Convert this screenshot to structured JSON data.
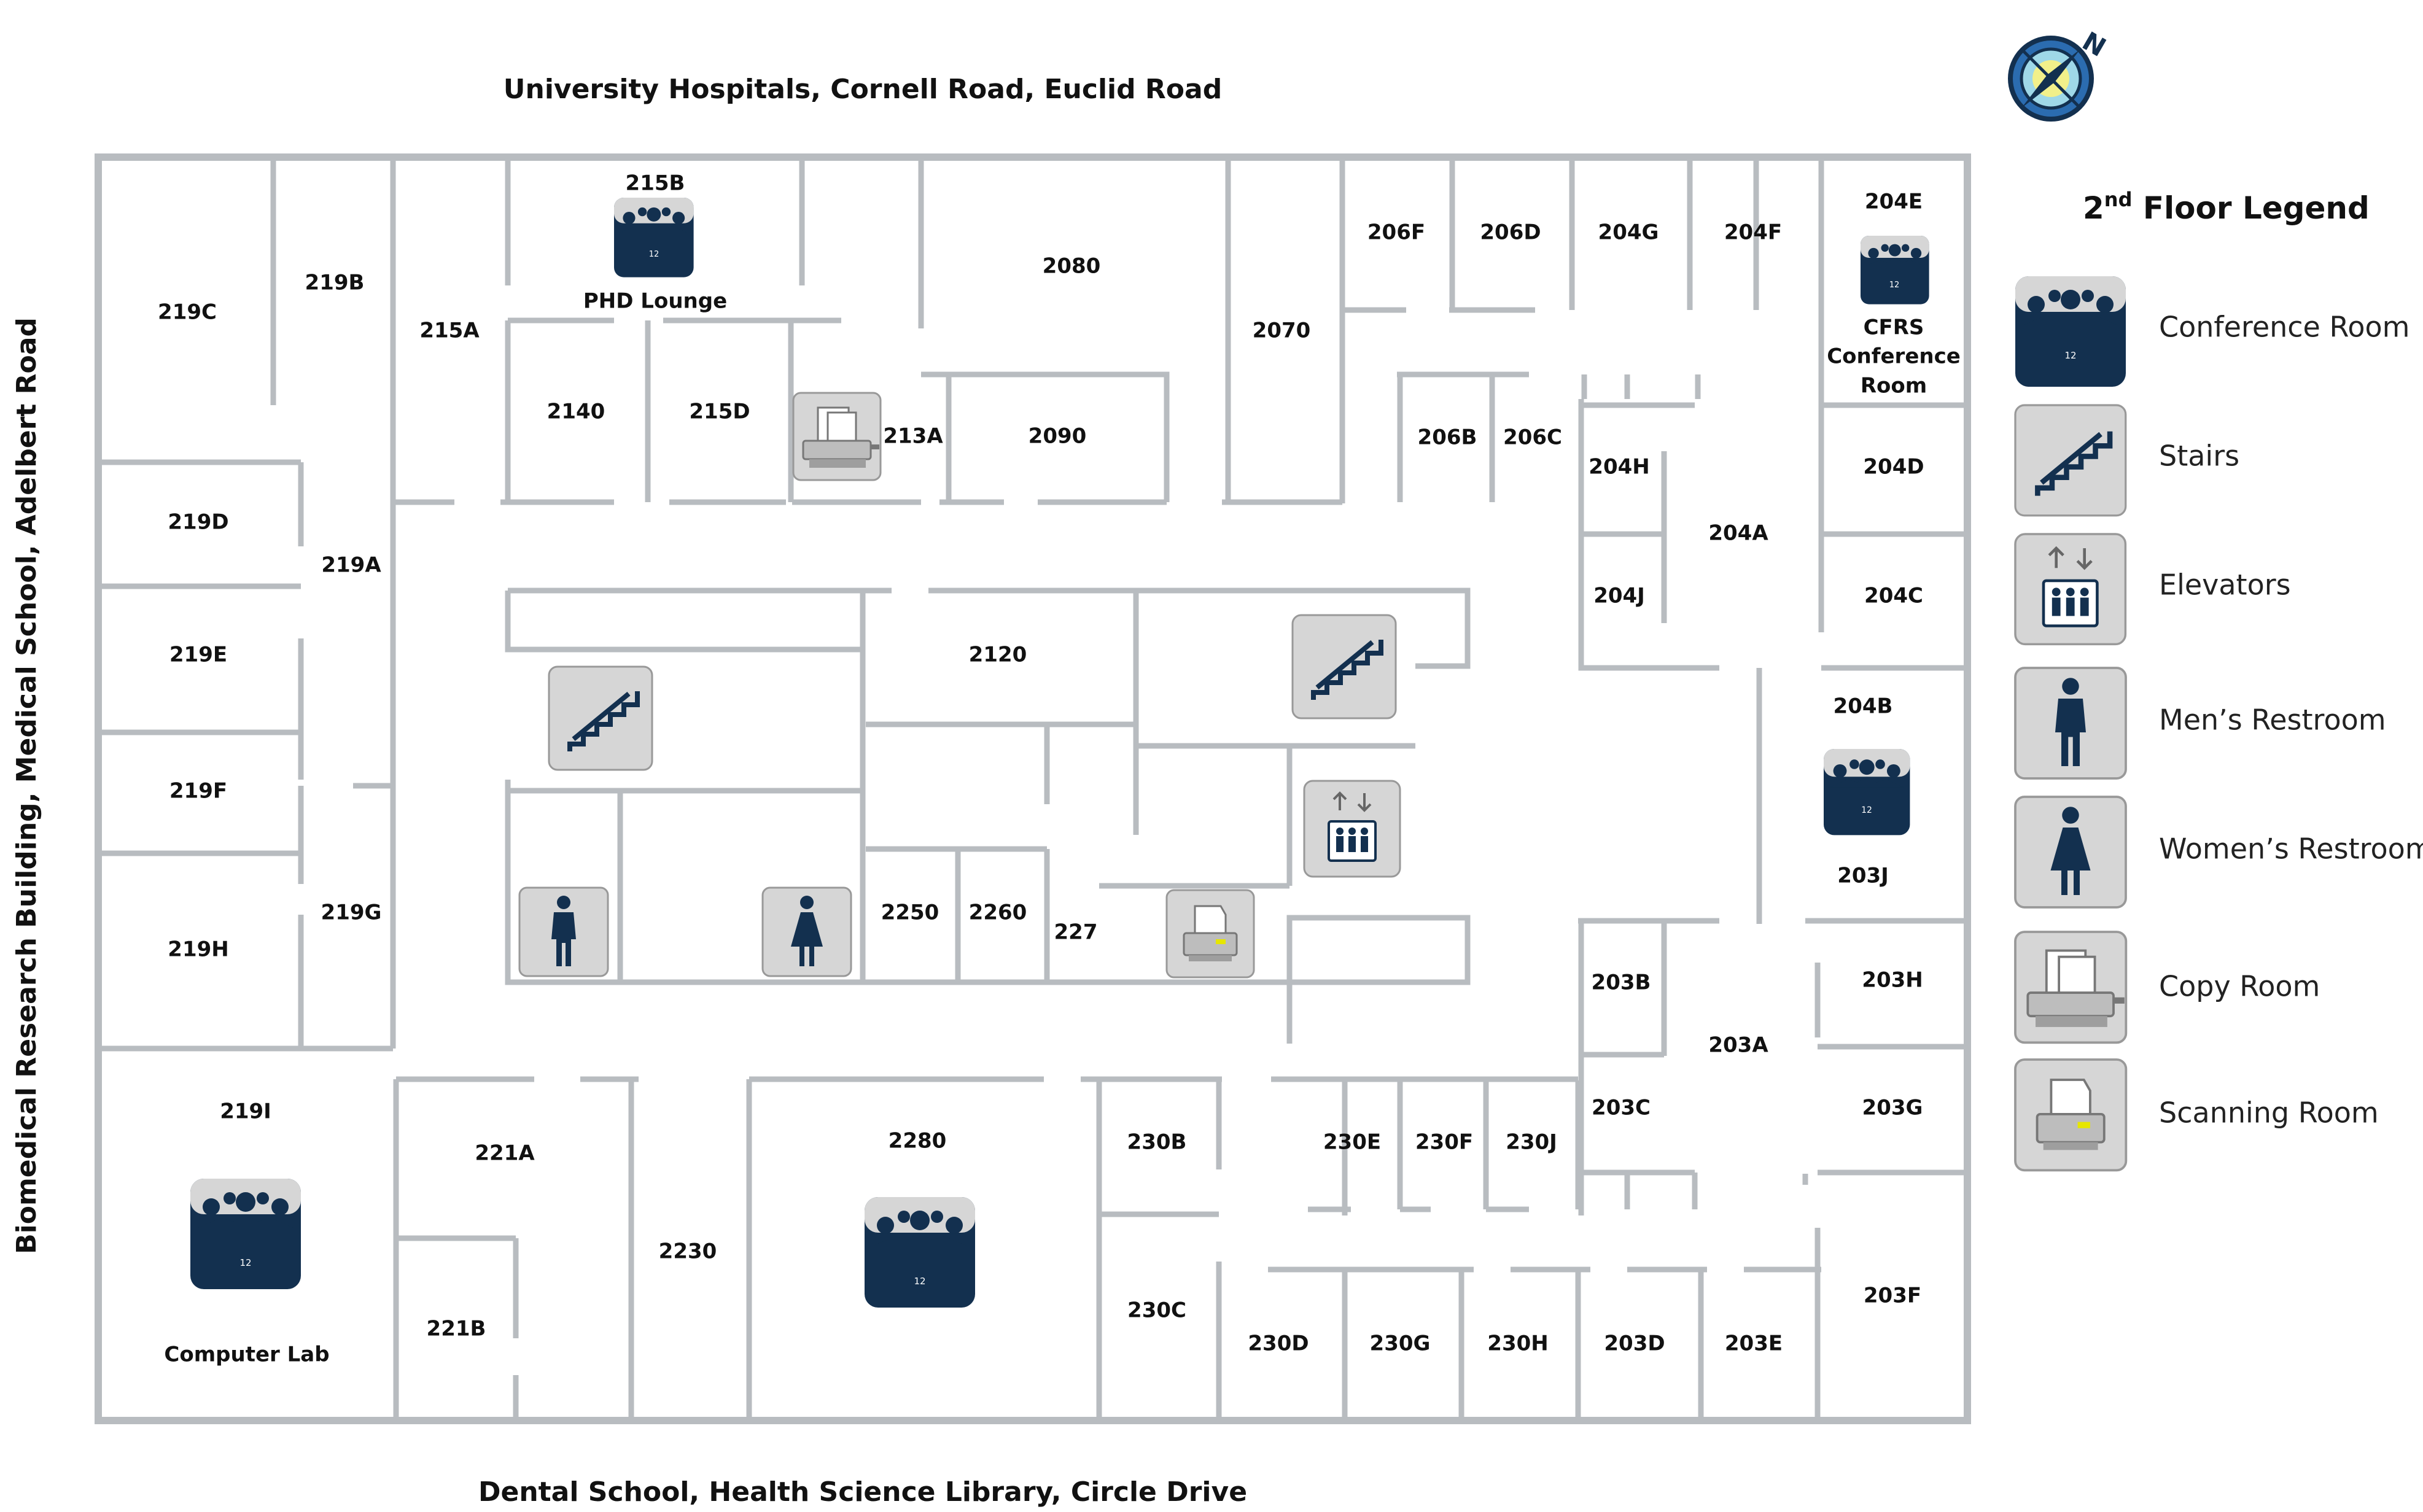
{
  "streets": {
    "top": "University Hospitals, Cornell Road, Euclid Road",
    "bottom": "Dental School, Health Science Library, Circle Drive",
    "left": "Biomedical Research Building, Medical School, Adelbert Road"
  },
  "compass": {
    "letter": "N"
  },
  "legend": {
    "title": "2",
    "title_sup": "nd",
    "title_rest": " Floor Legend",
    "items": [
      {
        "label": "Conference Room",
        "icon": "conference-room-icon"
      },
      {
        "label": "Stairs",
        "icon": "stairs-icon"
      },
      {
        "label": "Elevators",
        "icon": "elevator-icon"
      },
      {
        "label": "Men’s Restroom",
        "icon": "mens-restroom-icon"
      },
      {
        "label": "Women’s Restroom",
        "icon": "womens-restroom-icon"
      },
      {
        "label": "Copy Room",
        "icon": "copy-room-icon"
      },
      {
        "label": "Scanning Room",
        "icon": "scanning-room-icon"
      }
    ]
  },
  "icon_text": {
    "conference_capacity": "12"
  },
  "rooms": {
    "r219C": "219C",
    "r219B": "219B",
    "r215A": "215A",
    "r215B": "215B",
    "phd_lounge": "PHD Lounge",
    "r2140": "2140",
    "r215D": "215D",
    "r213A": "213A",
    "r2080": "2080",
    "r2090": "2090",
    "r2070": "2070",
    "r206F": "206F",
    "r206D": "206D",
    "r204G": "204G",
    "r204F": "204F",
    "r204E": "204E",
    "cfrs_line1": "CFRS",
    "cfrs_line2": "Conference",
    "cfrs_line3": "Room",
    "r206B": "206B",
    "r206C": "206C",
    "r204H": "204H",
    "r204D": "204D",
    "r204A": "204A",
    "r204J": "204J",
    "r204C": "204C",
    "r219D": "219D",
    "r219A": "219A",
    "r219E": "219E",
    "r2120": "2120",
    "r204B": "204B",
    "r219F": "219F",
    "r203J": "203J",
    "r219G": "219G",
    "r2250": "2250",
    "r2260": "2260",
    "r227": "227",
    "r219H": "219H",
    "r203B": "203B",
    "r203H": "203H",
    "r203A": "203A",
    "r219I": "219I",
    "r221A": "221A",
    "r2280": "2280",
    "r230B": "230B",
    "r230E": "230E",
    "r230F": "230F",
    "r230J": "230J",
    "r203C": "203C",
    "r203G": "203G",
    "r2230": "2230",
    "r230C": "230C",
    "r203F": "203F",
    "r221B": "221B",
    "r230D": "230D",
    "r230G": "230G",
    "r230H": "230H",
    "r203D": "203D",
    "r203E": "203E",
    "computer_lab": "Computer Lab"
  },
  "colors": {
    "navy": "#13304f",
    "wall": "#b8bcc0",
    "tile": "#d6d6d6"
  }
}
